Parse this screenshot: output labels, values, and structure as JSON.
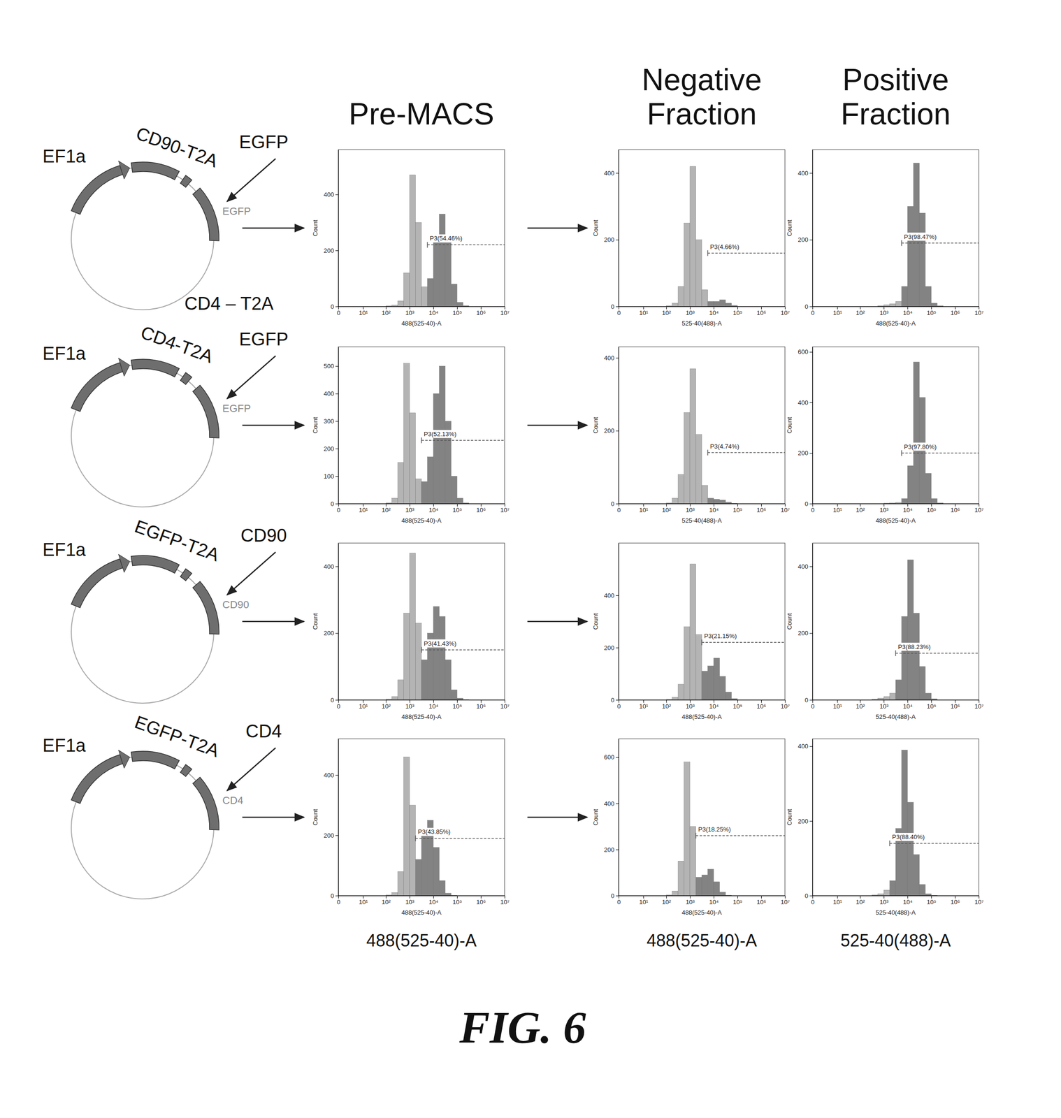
{
  "figure": {
    "caption": "FIG. 6",
    "column_titles": [
      "Pre-MACS",
      "Negative Fraction",
      "Positive Fraction"
    ],
    "column_axis_labels": [
      "488(525-40)-A",
      "488(525-40)-A",
      "525-40(488)-A"
    ],
    "plasmids": [
      {
        "promoter": "EF1a",
        "insert": "CD90-T2A",
        "pointer": "EGFP",
        "arc_label": "EGFP",
        "backbone": "CD4 – T2A"
      },
      {
        "promoter": "EF1a",
        "insert": "CD4-T2A",
        "pointer": "EGFP",
        "arc_label": "EGFP"
      },
      {
        "promoter": "EF1a",
        "insert": "EGFP-T2A",
        "pointer": "CD90",
        "arc_label": "CD90"
      },
      {
        "promoter": "EF1a",
        "insert": "EGFP-T2A",
        "pointer": "CD4",
        "arc_label": "CD4"
      }
    ]
  },
  "chart_data": [
    {
      "type": "histogram",
      "x_label": "488(525-40)-A",
      "y_label": "Count",
      "color": "#b4b4b4",
      "log": "x",
      "bins": [
        100,
        178,
        316,
        562,
        1000,
        1778,
        3162,
        5623,
        10000,
        17783,
        31623,
        56234,
        100000,
        177828,
        316228,
        562341,
        1000000
      ],
      "counts": [
        2,
        5,
        20,
        120,
        470,
        300,
        70,
        100,
        240,
        330,
        250,
        80,
        15,
        3,
        0,
        0
      ],
      "xlim": [
        0,
        10000000
      ],
      "xticks": [
        {
          "value": 0,
          "label": "0"
        },
        {
          "value": 10,
          "label": "10¹"
        },
        {
          "value": 100,
          "label": "10²"
        },
        {
          "value": 1000,
          "label": "10³"
        },
        {
          "value": 10000,
          "label": "10⁴"
        },
        {
          "value": 100000,
          "label": "10⁵"
        },
        {
          "value": 1000000,
          "label": "10⁶"
        },
        {
          "value": 10000000,
          "label": "10⁷"
        }
      ],
      "ylim": [
        0,
        560
      ],
      "yticks": [
        0,
        200,
        400
      ],
      "annotations": [
        {
          "text": "P3(54.46%)",
          "x": [
            5623,
            10000000
          ],
          "y": 220
        }
      ]
    },
    {
      "type": "histogram",
      "x_label": "525-40(488)-A",
      "y_label": "Count",
      "color": "#b4b4b4",
      "log": "x",
      "bins": [
        100,
        178,
        316,
        562,
        1000,
        1778,
        3162,
        5623,
        10000,
        17783,
        31623,
        56234,
        100000,
        177828,
        316228,
        562341,
        1000000
      ],
      "counts": [
        2,
        10,
        60,
        250,
        420,
        200,
        50,
        15,
        15,
        20,
        10,
        3,
        0,
        0,
        0,
        0
      ],
      "xlim": [
        0,
        10000000
      ],
      "xticks": [
        {
          "value": 0,
          "label": "0"
        },
        {
          "value": 10,
          "label": "10¹"
        },
        {
          "value": 100,
          "label": "10²"
        },
        {
          "value": 1000,
          "label": "10³"
        },
        {
          "value": 10000,
          "label": "10⁴"
        },
        {
          "value": 100000,
          "label": "10⁵"
        },
        {
          "value": 1000000,
          "label": "10⁶"
        },
        {
          "value": 10000000,
          "label": "10⁷"
        }
      ],
      "ylim": [
        0,
        470
      ],
      "yticks": [
        0,
        200,
        400
      ],
      "annotations": [
        {
          "text": "P3(4.66%)",
          "x": [
            5623,
            10000000
          ],
          "y": 160
        }
      ]
    },
    {
      "type": "histogram",
      "x_label": "488(525-40)-A",
      "y_label": "Count",
      "color": "#b4b4b4",
      "log": "x",
      "bins": [
        100,
        178,
        316,
        562,
        1000,
        1778,
        3162,
        5623,
        10000,
        17783,
        31623,
        56234,
        100000,
        177828,
        316228,
        562341,
        1000000
      ],
      "counts": [
        0,
        0,
        0,
        2,
        5,
        8,
        15,
        60,
        300,
        430,
        280,
        60,
        10,
        2,
        0,
        0
      ],
      "xlim": [
        0,
        10000000
      ],
      "xticks": [
        {
          "value": 0,
          "label": "0"
        },
        {
          "value": 10,
          "label": "10¹"
        },
        {
          "value": 100,
          "label": "10²"
        },
        {
          "value": 1000,
          "label": "10³"
        },
        {
          "value": 10000,
          "label": "10⁴"
        },
        {
          "value": 100000,
          "label": "10⁵"
        },
        {
          "value": 1000000,
          "label": "10⁶"
        },
        {
          "value": 10000000,
          "label": "10⁷"
        }
      ],
      "ylim": [
        0,
        470
      ],
      "yticks": [
        0,
        200,
        400
      ],
      "annotations": [
        {
          "text": "P3(98.47%)",
          "x": [
            5623,
            10000000
          ],
          "y": 190
        }
      ]
    },
    {
      "type": "histogram",
      "x_label": "488(525-40)-A",
      "y_label": "Count",
      "color": "#b4b4b4",
      "log": "x",
      "bins": [
        100,
        178,
        316,
        562,
        1000,
        1778,
        3162,
        5623,
        10000,
        17783,
        31623,
        56234,
        100000,
        177828,
        316228,
        562341,
        1000000
      ],
      "counts": [
        3,
        20,
        150,
        510,
        330,
        90,
        80,
        170,
        400,
        500,
        300,
        100,
        20,
        3,
        0,
        0
      ],
      "xlim": [
        0,
        10000000
      ],
      "xticks": [
        {
          "value": 0,
          "label": "0"
        },
        {
          "value": 10,
          "label": "10¹"
        },
        {
          "value": 100,
          "label": "10²"
        },
        {
          "value": 1000,
          "label": "10³"
        },
        {
          "value": 10000,
          "label": "10⁴"
        },
        {
          "value": 100000,
          "label": "10⁵"
        },
        {
          "value": 1000000,
          "label": "10⁶"
        },
        {
          "value": 10000000,
          "label": "10⁷"
        }
      ],
      "ylim": [
        0,
        570
      ],
      "yticks": [
        0,
        100,
        200,
        300,
        400,
        500
      ],
      "annotations": [
        {
          "text": "P3(52.13%)",
          "x": [
            3162,
            10000000
          ],
          "y": 230
        }
      ]
    },
    {
      "type": "histogram",
      "x_label": "525-40(488)-A",
      "y_label": "Count",
      "color": "#b4b4b4",
      "log": "x",
      "bins": [
        100,
        178,
        316,
        562,
        1000,
        1778,
        3162,
        5623,
        10000,
        17783,
        31623,
        56234,
        100000,
        177828,
        316228,
        562341,
        1000000
      ],
      "counts": [
        2,
        15,
        80,
        250,
        370,
        190,
        50,
        15,
        12,
        10,
        4,
        1,
        0,
        0,
        0,
        0
      ],
      "xlim": [
        0,
        10000000
      ],
      "xticks": [
        {
          "value": 0,
          "label": "0"
        },
        {
          "value": 10,
          "label": "10¹"
        },
        {
          "value": 100,
          "label": "10²"
        },
        {
          "value": 1000,
          "label": "10³"
        },
        {
          "value": 10000,
          "label": "10⁴"
        },
        {
          "value": 100000,
          "label": "10⁵"
        },
        {
          "value": 1000000,
          "label": "10⁶"
        },
        {
          "value": 10000000,
          "label": "10⁷"
        }
      ],
      "ylim": [
        0,
        430
      ],
      "yticks": [
        0,
        200,
        400
      ],
      "annotations": [
        {
          "text": "P3(4.74%)",
          "x": [
            5623,
            10000000
          ],
          "y": 140
        }
      ]
    },
    {
      "type": "histogram",
      "x_label": "488(525-40)-A",
      "y_label": "Count",
      "color": "#b4b4b4",
      "log": "x",
      "bins": [
        100,
        178,
        316,
        562,
        1000,
        1778,
        3162,
        5623,
        10000,
        17783,
        31623,
        56234,
        100000,
        177828,
        316228,
        562341,
        1000000
      ],
      "counts": [
        0,
        0,
        0,
        0,
        2,
        3,
        5,
        20,
        150,
        560,
        420,
        120,
        20,
        3,
        0,
        0
      ],
      "xlim": [
        0,
        10000000
      ],
      "xticks": [
        {
          "value": 0,
          "label": "0"
        },
        {
          "value": 10,
          "label": "10¹"
        },
        {
          "value": 100,
          "label": "10²"
        },
        {
          "value": 1000,
          "label": "10³"
        },
        {
          "value": 10000,
          "label": "10⁴"
        },
        {
          "value": 100000,
          "label": "10⁵"
        },
        {
          "value": 1000000,
          "label": "10⁶"
        },
        {
          "value": 10000000,
          "label": "10⁷"
        }
      ],
      "ylim": [
        0,
        620
      ],
      "yticks": [
        0,
        200,
        400,
        600
      ],
      "annotations": [
        {
          "text": "P3(97.80%)",
          "x": [
            5623,
            10000000
          ],
          "y": 200
        }
      ]
    },
    {
      "type": "histogram",
      "x_label": "488(525-40)-A",
      "y_label": "Count",
      "color": "#b4b4b4",
      "log": "x",
      "bins": [
        100,
        178,
        316,
        562,
        1000,
        1778,
        3162,
        5623,
        10000,
        17783,
        31623,
        56234,
        100000,
        177828,
        316228,
        562341,
        1000000
      ],
      "counts": [
        2,
        10,
        60,
        260,
        440,
        230,
        120,
        200,
        280,
        250,
        120,
        30,
        5,
        1,
        0,
        0
      ],
      "xlim": [
        0,
        10000000
      ],
      "xticks": [
        {
          "value": 0,
          "label": "0"
        },
        {
          "value": 10,
          "label": "10¹"
        },
        {
          "value": 100,
          "label": "10²"
        },
        {
          "value": 1000,
          "label": "10³"
        },
        {
          "value": 10000,
          "label": "10⁴"
        },
        {
          "value": 100000,
          "label": "10⁵"
        },
        {
          "value": 1000000,
          "label": "10⁶"
        },
        {
          "value": 10000000,
          "label": "10⁷"
        }
      ],
      "ylim": [
        0,
        470
      ],
      "yticks": [
        0,
        200,
        400
      ],
      "annotations": [
        {
          "text": "P3(41.43%)",
          "x": [
            3162,
            10000000
          ],
          "y": 150
        }
      ]
    },
    {
      "type": "histogram",
      "x_label": "488(525-40)-A",
      "y_label": "Count",
      "color": "#b4b4b4",
      "log": "x",
      "bins": [
        100,
        178,
        316,
        562,
        1000,
        1778,
        3162,
        5623,
        10000,
        17783,
        31623,
        56234,
        100000,
        177828,
        316228,
        562341,
        1000000
      ],
      "counts": [
        2,
        10,
        60,
        280,
        520,
        250,
        110,
        130,
        160,
        90,
        30,
        5,
        0,
        0,
        0,
        0
      ],
      "xlim": [
        0,
        10000000
      ],
      "xticks": [
        {
          "value": 0,
          "label": "0"
        },
        {
          "value": 10,
          "label": "10¹"
        },
        {
          "value": 100,
          "label": "10²"
        },
        {
          "value": 1000,
          "label": "10³"
        },
        {
          "value": 10000,
          "label": "10⁴"
        },
        {
          "value": 100000,
          "label": "10⁵"
        },
        {
          "value": 1000000,
          "label": "10⁶"
        },
        {
          "value": 10000000,
          "label": "10⁷"
        }
      ],
      "ylim": [
        0,
        600
      ],
      "yticks": [
        0,
        200,
        400
      ],
      "annotations": [
        {
          "text": "P3(21.15%)",
          "x": [
            3162,
            10000000
          ],
          "y": 220
        }
      ]
    },
    {
      "type": "histogram",
      "x_label": "525-40(488)-A",
      "y_label": "Count",
      "color": "#b4b4b4",
      "log": "x",
      "bins": [
        100,
        178,
        316,
        562,
        1000,
        1778,
        3162,
        5623,
        10000,
        17783,
        31623,
        56234,
        100000,
        177828,
        316228,
        562341,
        1000000
      ],
      "counts": [
        0,
        0,
        2,
        5,
        10,
        20,
        60,
        250,
        420,
        260,
        100,
        20,
        3,
        0,
        0,
        0
      ],
      "xlim": [
        0,
        10000000
      ],
      "xticks": [
        {
          "value": 0,
          "label": "0"
        },
        {
          "value": 10,
          "label": "10¹"
        },
        {
          "value": 100,
          "label": "10²"
        },
        {
          "value": 1000,
          "label": "10³"
        },
        {
          "value": 10000,
          "label": "10⁴"
        },
        {
          "value": 100000,
          "label": "10⁵"
        },
        {
          "value": 1000000,
          "label": "10⁶"
        },
        {
          "value": 10000000,
          "label": "10⁷"
        }
      ],
      "ylim": [
        0,
        470
      ],
      "yticks": [
        0,
        200,
        400
      ],
      "annotations": [
        {
          "text": "P3(88.23%)",
          "x": [
            3162,
            10000000
          ],
          "y": 140
        }
      ]
    },
    {
      "type": "histogram",
      "x_label": "488(525-40)-A",
      "y_label": "Count",
      "color": "#b4b4b4",
      "log": "x",
      "bins": [
        100,
        178,
        316,
        562,
        1000,
        1778,
        3162,
        5623,
        10000,
        17783,
        31623,
        56234,
        100000,
        177828,
        316228,
        562341,
        1000000
      ],
      "counts": [
        2,
        10,
        80,
        460,
        300,
        120,
        210,
        250,
        160,
        50,
        8,
        1,
        0,
        0,
        0,
        0
      ],
      "xlim": [
        0,
        10000000
      ],
      "xticks": [
        {
          "value": 0,
          "label": "0"
        },
        {
          "value": 10,
          "label": "10¹"
        },
        {
          "value": 100,
          "label": "10²"
        },
        {
          "value": 1000,
          "label": "10³"
        },
        {
          "value": 10000,
          "label": "10⁴"
        },
        {
          "value": 100000,
          "label": "10⁵"
        },
        {
          "value": 1000000,
          "label": "10⁶"
        },
        {
          "value": 10000000,
          "label": "10⁷"
        }
      ],
      "ylim": [
        0,
        520
      ],
      "yticks": [
        0,
        200,
        400
      ],
      "annotations": [
        {
          "text": "P3(43.85%)",
          "x": [
            1778,
            10000000
          ],
          "y": 190
        }
      ]
    },
    {
      "type": "histogram",
      "x_label": "488(525-40)-A",
      "y_label": "Count",
      "color": "#b4b4b4",
      "log": "x",
      "bins": [
        100,
        178,
        316,
        562,
        1000,
        1778,
        3162,
        5623,
        10000,
        17783,
        31623,
        56234,
        100000,
        177828,
        316228,
        562341,
        1000000
      ],
      "counts": [
        3,
        20,
        150,
        580,
        300,
        80,
        90,
        115,
        60,
        15,
        2,
        0,
        0,
        0,
        0,
        0
      ],
      "xlim": [
        0,
        10000000
      ],
      "xticks": [
        {
          "value": 0,
          "label": "0"
        },
        {
          "value": 10,
          "label": "10¹"
        },
        {
          "value": 100,
          "label": "10²"
        },
        {
          "value": 1000,
          "label": "10³"
        },
        {
          "value": 10000,
          "label": "10⁴"
        },
        {
          "value": 100000,
          "label": "10⁵"
        },
        {
          "value": 1000000,
          "label": "10⁶"
        },
        {
          "value": 10000000,
          "label": "10⁷"
        }
      ],
      "ylim": [
        0,
        680
      ],
      "yticks": [
        0,
        200,
        400,
        600
      ],
      "annotations": [
        {
          "text": "P3(18.25%)",
          "x": [
            1778,
            10000000
          ],
          "y": 260
        }
      ]
    },
    {
      "type": "histogram",
      "x_label": "525-40(488)-A",
      "y_label": "Count",
      "color": "#b4b4b4",
      "log": "x",
      "bins": [
        100,
        178,
        316,
        562,
        1000,
        1778,
        3162,
        5623,
        10000,
        17783,
        31623,
        56234,
        100000,
        177828,
        316228,
        562341,
        1000000
      ],
      "counts": [
        0,
        0,
        2,
        5,
        15,
        40,
        180,
        390,
        250,
        110,
        30,
        5,
        1,
        0,
        0,
        0
      ],
      "xlim": [
        0,
        10000000
      ],
      "xticks": [
        {
          "value": 0,
          "label": "0"
        },
        {
          "value": 10,
          "label": "10¹"
        },
        {
          "value": 100,
          "label": "10²"
        },
        {
          "value": 1000,
          "label": "10³"
        },
        {
          "value": 10000,
          "label": "10⁴"
        },
        {
          "value": 100000,
          "label": "10⁵"
        },
        {
          "value": 1000000,
          "label": "10⁶"
        },
        {
          "value": 10000000,
          "label": "10⁷"
        }
      ],
      "ylim": [
        0,
        420
      ],
      "yticks": [
        0,
        200,
        400
      ],
      "annotations": [
        {
          "text": "P3(88.40%)",
          "x": [
            1778,
            10000000
          ],
          "y": 140
        }
      ]
    }
  ]
}
